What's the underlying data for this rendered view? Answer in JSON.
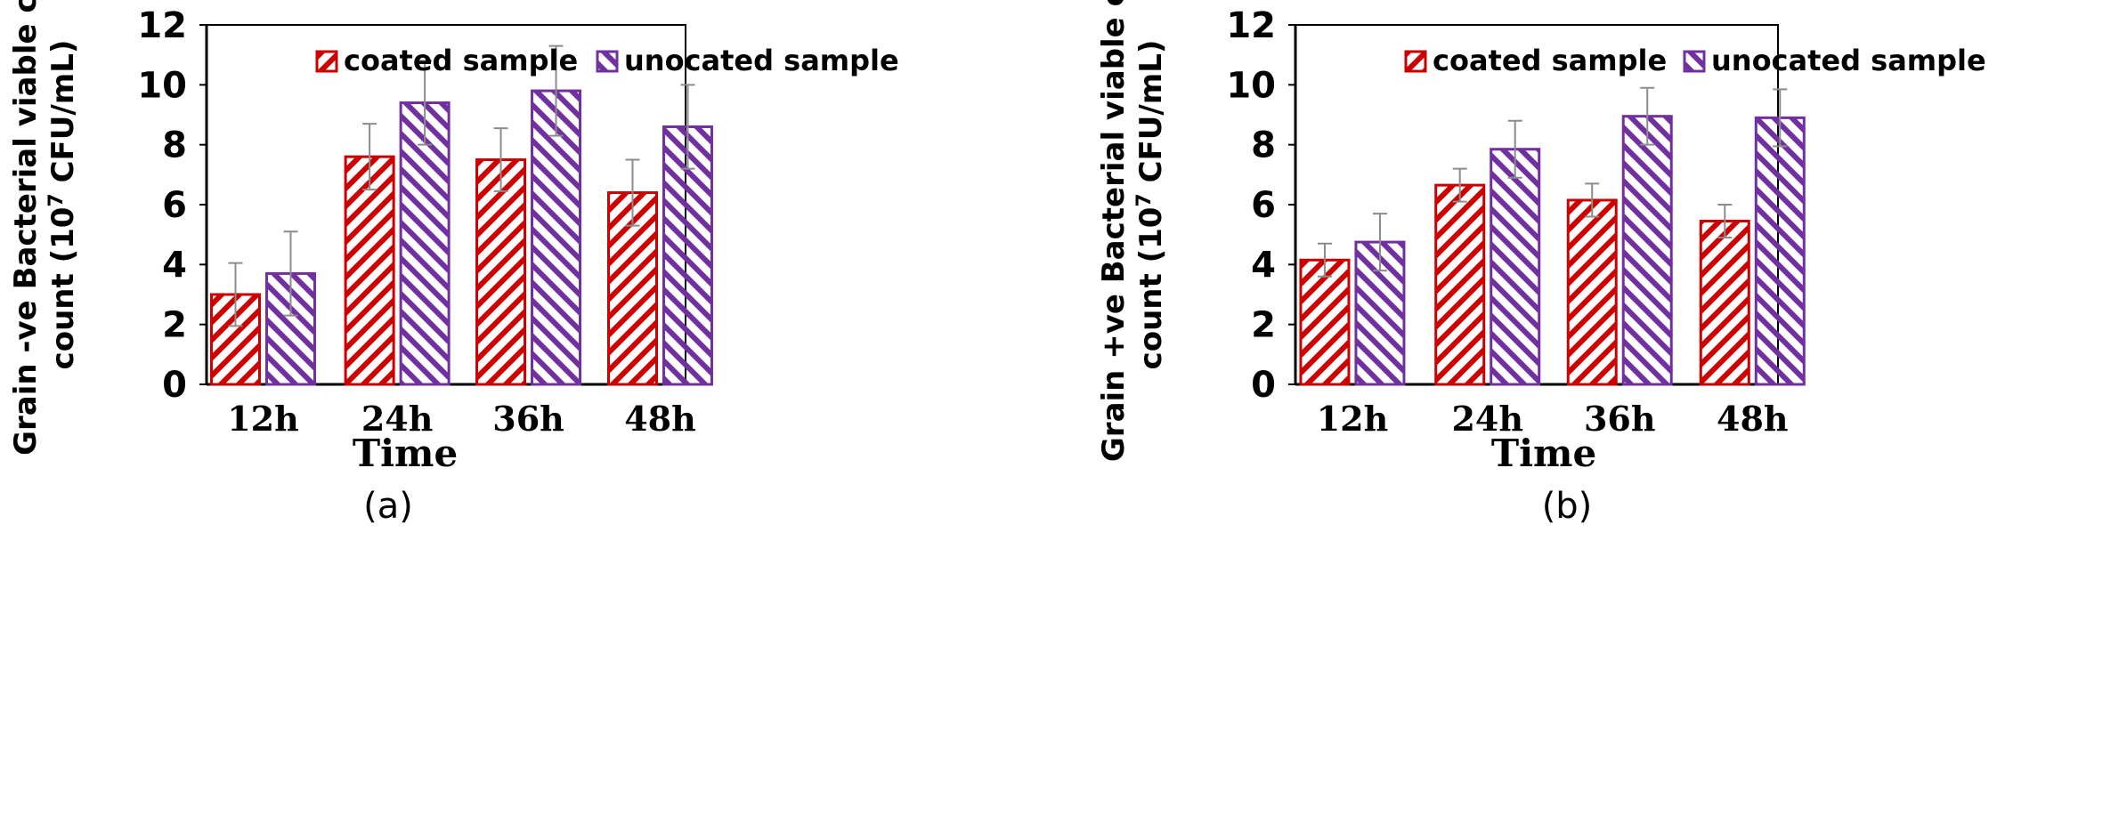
{
  "colors": {
    "coated": "#cc0000",
    "uncoated": "#7030a0",
    "axis": "#000000",
    "errorbar": "#8c8c8c"
  },
  "chart_data": [
    {
      "type": "bar",
      "panel_label": "(a)",
      "categories": [
        "12h",
        "24h",
        "36h",
        "48h"
      ],
      "ylim": [
        0,
        12
      ],
      "yticks": [
        "0",
        "2",
        "4",
        "6",
        "8",
        "10",
        "12"
      ],
      "xlabel": "Time",
      "ylabel_line1": "Grain -ve Bacterial viable cell",
      "ylabel_line2_pre": "count (10",
      "ylabel_line2_sup": "7",
      "ylabel_line2_post": " CFU/mL)",
      "legend_position": "top-center",
      "grid": false,
      "series": [
        {
          "name": "coated sample",
          "values": [
            3.0,
            7.6,
            7.5,
            6.4
          ],
          "errors": [
            1.05,
            1.1,
            1.05,
            1.1
          ]
        },
        {
          "name": "unocated sample",
          "values": [
            3.7,
            9.4,
            9.8,
            8.6
          ],
          "errors": [
            1.4,
            1.4,
            1.5,
            1.4
          ]
        }
      ]
    },
    {
      "type": "bar",
      "panel_label": "(b)",
      "categories": [
        "12h",
        "24h",
        "36h",
        "48h"
      ],
      "ylim": [
        0,
        12
      ],
      "yticks": [
        "0",
        "2",
        "4",
        "6",
        "8",
        "10",
        "12"
      ],
      "xlabel": "Time",
      "ylabel_line1": "Grain +ve Bacterial viable cell",
      "ylabel_line2_pre": "count (10",
      "ylabel_line2_sup": "7",
      "ylabel_line2_post": " CFU/mL)",
      "legend_position": "top-center",
      "grid": false,
      "series": [
        {
          "name": "coated sample",
          "values": [
            4.15,
            6.65,
            6.15,
            5.45
          ],
          "errors": [
            0.55,
            0.55,
            0.55,
            0.55
          ]
        },
        {
          "name": "unocated sample",
          "values": [
            4.75,
            7.85,
            8.95,
            8.9
          ],
          "errors": [
            0.95,
            0.95,
            0.95,
            0.95
          ]
        }
      ]
    }
  ]
}
